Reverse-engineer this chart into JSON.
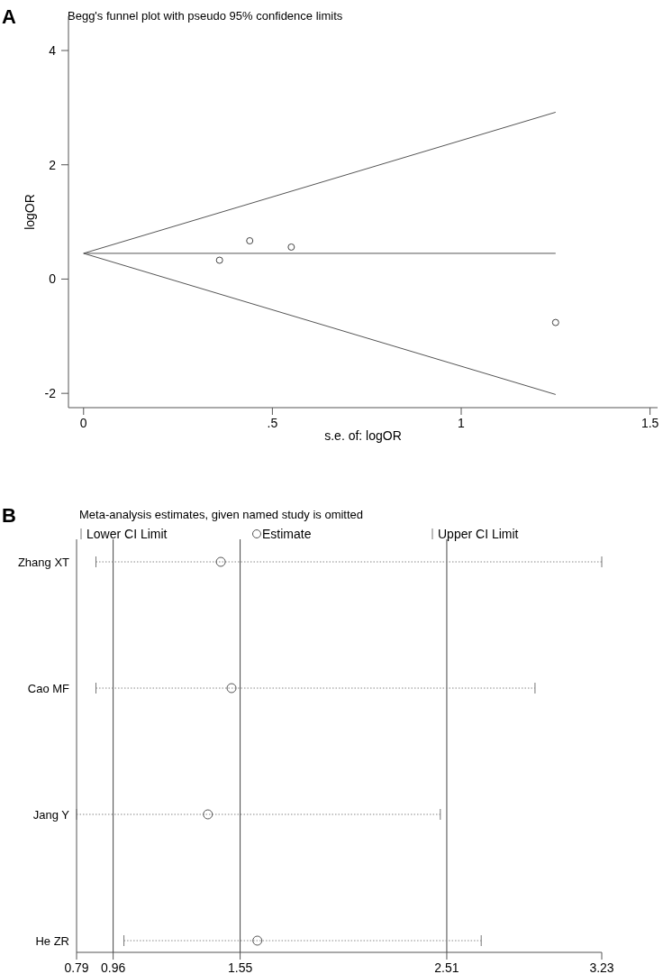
{
  "chart_data": [
    {
      "type": "scatter",
      "title": "Begg's funnel plot with pseudo 95% confidence limits",
      "xlabel": "s.e. of: logOR",
      "ylabel": "logOR",
      "annotations": [
        "A"
      ],
      "xlim": [
        -0.04,
        1.52
      ],
      "ylim": [
        -2.25,
        4.6
      ],
      "xticks": [
        0,
        {
          "value": 0.5,
          "label": ".5"
        },
        1,
        1.5
      ],
      "yticks": [
        -2,
        0,
        2,
        4
      ],
      "series": [
        {
          "marker": "circle",
          "x": [
            0.36,
            0.44,
            0.55,
            1.25
          ],
          "values": [
            0.33,
            0.67,
            0.56,
            -0.76
          ],
          "color": "#444444"
        },
        {
          "type": "line",
          "x": [
            0,
            1.25
          ],
          "values": [
            0.45,
            2.92
          ],
          "color": "#555555"
        },
        {
          "type": "line",
          "x": [
            0,
            1.25
          ],
          "values": [
            0.45,
            -2.02
          ],
          "color": "#555555"
        },
        {
          "type": "line",
          "x": [
            0,
            1.25
          ],
          "values": [
            0.45,
            0.45
          ],
          "color": "#555555"
        }
      ]
    },
    {
      "type": "scatter",
      "orientation": "horizontal",
      "title": "Meta-analysis estimates, given named study is omitted",
      "annotations": [
        "B",
        "Lower CI Limit",
        "Upper CI Limit"
      ],
      "categories": [
        "Zhang XT",
        "Cao MF",
        "Jang Y",
        "He ZR"
      ],
      "xlim": [
        0.79,
        3.23
      ],
      "xticks": [
        0.79,
        0.96,
        1.55,
        2.51,
        3.23
      ],
      "marker": "circle",
      "legend": "top",
      "ref_lines": [
        {
          "axis": "x",
          "value": 0.96,
          "color": "#444444"
        },
        {
          "axis": "x",
          "value": 1.55,
          "color": "#444444"
        },
        {
          "axis": "x",
          "value": 2.51,
          "color": "#444444"
        }
      ],
      "series": [
        {
          "name": "Estimate",
          "values": [
            1.46,
            1.51,
            1.4,
            1.63
          ],
          "errors": [
            [
              0.88,
              3.23
            ],
            [
              0.88,
              2.92
            ],
            [
              0.79,
              2.48
            ],
            [
              1.01,
              2.67
            ]
          ],
          "color": "#555555"
        }
      ]
    }
  ]
}
